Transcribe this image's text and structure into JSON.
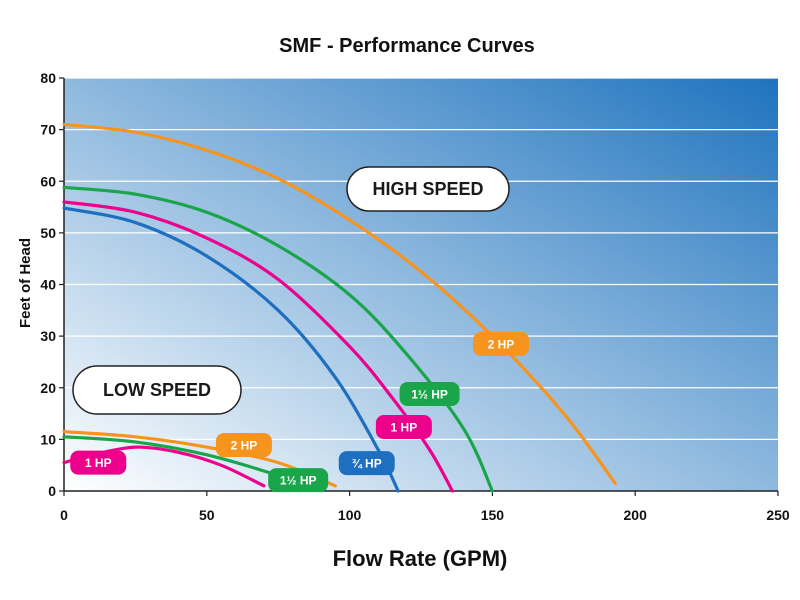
{
  "chart_data": {
    "type": "line",
    "title": "SMF - Performance Curves",
    "xlabel": "Flow Rate (GPM)",
    "ylabel": "Feet of Head",
    "xlim": [
      0,
      250
    ],
    "ylim": [
      0,
      80
    ],
    "xticks": [
      0,
      50,
      100,
      150,
      200,
      250
    ],
    "yticks": [
      0,
      10,
      20,
      30,
      40,
      50,
      60,
      70,
      80
    ],
    "grid": true,
    "annotations": [
      {
        "id": "high",
        "text": "HIGH SPEED"
      },
      {
        "id": "low",
        "text": "LOW SPEED"
      }
    ],
    "series": [
      {
        "name": "2 HP",
        "group": "high",
        "color": "#f7941d",
        "points": [
          [
            0,
            71
          ],
          [
            25,
            69.5
          ],
          [
            50,
            66
          ],
          [
            75,
            60.5
          ],
          [
            100,
            52.5
          ],
          [
            125,
            42.5
          ],
          [
            150,
            30
          ],
          [
            175,
            15
          ],
          [
            193,
            1.5
          ]
        ]
      },
      {
        "name": "1½ HP",
        "group": "high",
        "color": "#1aa54a",
        "points": [
          [
            0,
            58.8
          ],
          [
            25,
            57.5
          ],
          [
            50,
            54
          ],
          [
            75,
            47.5
          ],
          [
            100,
            38
          ],
          [
            120,
            26.5
          ],
          [
            140,
            12
          ],
          [
            150,
            0
          ]
        ]
      },
      {
        "name": "1 HP",
        "group": "high",
        "color": "#ec008c",
        "points": [
          [
            0,
            56
          ],
          [
            25,
            54
          ],
          [
            50,
            49
          ],
          [
            75,
            41
          ],
          [
            100,
            28
          ],
          [
            115,
            18
          ],
          [
            128,
            8
          ],
          [
            136,
            0
          ]
        ]
      },
      {
        "name": "¾ HP",
        "group": "high",
        "color": "#1f6fc0",
        "points": [
          [
            0,
            54.8
          ],
          [
            25,
            52
          ],
          [
            50,
            45.5
          ],
          [
            75,
            35
          ],
          [
            95,
            22
          ],
          [
            110,
            8
          ],
          [
            117,
            0
          ]
        ]
      },
      {
        "name": "2 HP",
        "group": "low",
        "color": "#f7941d",
        "points": [
          [
            0,
            11.5
          ],
          [
            25,
            10.5
          ],
          [
            50,
            8.5
          ],
          [
            75,
            5.5
          ],
          [
            95,
            1
          ]
        ]
      },
      {
        "name": "1½ HP",
        "group": "low",
        "color": "#1aa54a",
        "points": [
          [
            0,
            10.5
          ],
          [
            25,
            9.5
          ],
          [
            50,
            7
          ],
          [
            75,
            3
          ],
          [
            85,
            0.8
          ]
        ]
      },
      {
        "name": "1 HP",
        "group": "low",
        "color": "#ec008c",
        "points": [
          [
            0,
            5.5
          ],
          [
            10,
            7
          ],
          [
            25,
            8.5
          ],
          [
            40,
            7.5
          ],
          [
            55,
            5
          ],
          [
            70,
            1
          ]
        ]
      }
    ],
    "series_labels": [
      {
        "text": "2 HP",
        "color": "#f7941d",
        "at": [
          153,
          28.5
        ]
      },
      {
        "text": "1½ HP",
        "color": "#1aa54a",
        "at": [
          128,
          18.8
        ]
      },
      {
        "text": "1 HP",
        "color": "#ec008c",
        "at": [
          119,
          12.4
        ]
      },
      {
        "text": "¾ HP",
        "color": "#1f6fc0",
        "at": [
          106,
          5.4
        ]
      },
      {
        "text": "2 HP",
        "color": "#f7941d",
        "at": [
          63,
          8.9
        ]
      },
      {
        "text": "1½ HP",
        "color": "#1aa54a",
        "at": [
          82,
          2.1
        ]
      },
      {
        "text": "1 HP",
        "color": "#ec008c",
        "at": [
          12,
          5.5
        ]
      }
    ],
    "background_gradient": [
      "#ffffff",
      "#1e73be"
    ]
  }
}
